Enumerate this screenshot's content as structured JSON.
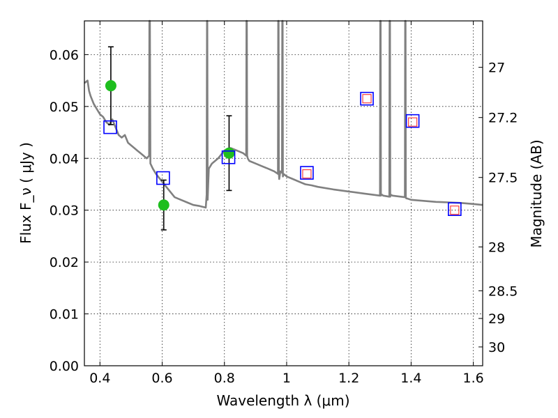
{
  "chart_data": {
    "type": "scatter",
    "title": "",
    "xlabel": "Wavelength  λ (μm)",
    "ylabel": "Flux  F_ν  ( μJy )",
    "y2label": "Magnitude (AB)",
    "xlim": [
      0.35,
      1.63
    ],
    "ylim": [
      0.0,
      0.0665
    ],
    "grid": true,
    "x_ticks": [
      0.4,
      0.6,
      0.8,
      1.0,
      1.2,
      1.4,
      1.6
    ],
    "x_tick_labels": [
      "0.4",
      "0.6",
      "0.8",
      "1",
      "1.2",
      "1.4",
      "1.6"
    ],
    "y_ticks": [
      0.0,
      0.01,
      0.02,
      0.03,
      0.04,
      0.05,
      0.06
    ],
    "y_tick_labels": [
      "0.00",
      "0.01",
      "0.02",
      "0.03",
      "0.04",
      "0.05",
      "0.06"
    ],
    "y2_ticks": [
      {
        "label": "27",
        "mag": 27.0
      },
      {
        "label": "27.2",
        "mag": 27.2
      },
      {
        "label": "27.5",
        "mag": 27.5
      },
      {
        "label": "28",
        "mag": 28.0
      },
      {
        "label": "28.5",
        "mag": 28.5
      },
      {
        "label": "29",
        "mag": 29.0
      },
      {
        "label": "30",
        "mag": 30.0
      }
    ],
    "series": [
      {
        "type": "line",
        "color": "#808080",
        "x": [
          0.35,
          0.36,
          0.365,
          0.37,
          0.38,
          0.39,
          0.4,
          0.41,
          0.42,
          0.43,
          0.44,
          0.45,
          0.46,
          0.47,
          0.48,
          0.49,
          0.5,
          0.51,
          0.52,
          0.53,
          0.54,
          0.55,
          0.558,
          0.559,
          0.5605,
          0.562,
          0.57,
          0.58,
          0.6,
          0.62,
          0.64,
          0.66,
          0.68,
          0.7,
          0.72,
          0.74,
          0.743,
          0.744,
          0.745,
          0.746,
          0.748,
          0.75,
          0.76,
          0.78,
          0.8,
          0.82,
          0.84,
          0.86,
          0.87,
          0.871,
          0.872,
          0.873,
          0.875,
          0.88,
          0.9,
          0.92,
          0.94,
          0.96,
          0.972,
          0.973,
          0.974,
          0.975,
          0.976,
          0.98,
          0.985,
          0.986,
          0.987,
          0.988,
          0.99,
          1.0,
          1.02,
          1.04,
          1.06,
          1.08,
          1.1,
          1.15,
          1.2,
          1.25,
          1.3,
          1.301,
          1.302,
          1.303,
          1.304,
          1.306,
          1.31,
          1.33,
          1.331,
          1.332,
          1.333,
          1.334,
          1.34,
          1.38,
          1.381,
          1.382,
          1.383,
          1.384,
          1.39,
          1.4,
          1.44,
          1.48,
          1.52,
          1.56,
          1.6,
          1.63
        ],
        "y": [
          0.0545,
          0.055,
          0.053,
          0.052,
          0.0505,
          0.0495,
          0.0485,
          0.048,
          0.047,
          0.0465,
          0.0475,
          0.046,
          0.0445,
          0.044,
          0.0445,
          0.043,
          0.0425,
          0.042,
          0.0415,
          0.041,
          0.0405,
          0.04,
          0.0405,
          0.0665,
          0.0665,
          0.039,
          0.038,
          0.037,
          0.0355,
          0.034,
          0.0325,
          0.032,
          0.0315,
          0.031,
          0.0308,
          0.0305,
          0.033,
          0.0665,
          0.0665,
          0.032,
          0.035,
          0.038,
          0.039,
          0.04,
          0.0415,
          0.042,
          0.0415,
          0.041,
          0.0405,
          0.0665,
          0.0665,
          0.0405,
          0.04,
          0.0395,
          0.039,
          0.0385,
          0.038,
          0.0375,
          0.037,
          0.0665,
          0.0665,
          0.037,
          0.036,
          0.0375,
          0.0372,
          0.0665,
          0.0665,
          0.0365,
          0.037,
          0.0365,
          0.036,
          0.0355,
          0.035,
          0.0348,
          0.0345,
          0.034,
          0.0336,
          0.0332,
          0.0328,
          0.0665,
          0.0665,
          0.0328,
          0.033,
          0.033,
          0.0328,
          0.0326,
          0.0665,
          0.0665,
          0.0326,
          0.033,
          0.0328,
          0.0325,
          0.0665,
          0.0665,
          0.0325,
          0.0323,
          0.0322,
          0.032,
          0.0318,
          0.0316,
          0.0315,
          0.0314,
          0.0312,
          0.031
        ]
      },
      {
        "type": "points",
        "marker": "circle",
        "color": "#1ebe1e",
        "x": [
          0.435,
          0.605,
          0.815
        ],
        "y": [
          0.054,
          0.031,
          0.041
        ],
        "yerr": [
          0.0075,
          0.0048,
          0.0072
        ]
      },
      {
        "type": "points",
        "marker": "square-open",
        "color": "#0000ff",
        "x": [
          0.433,
          0.603,
          0.813,
          1.065,
          1.258,
          1.405,
          1.54
        ],
        "y": [
          0.046,
          0.0362,
          0.0402,
          0.0372,
          0.0515,
          0.0472,
          0.0302
        ]
      },
      {
        "type": "points",
        "marker": "square-open-small",
        "color": "#ff4040",
        "x": [
          1.065,
          1.258,
          1.405,
          1.54
        ],
        "y": [
          0.037,
          0.0515,
          0.047,
          0.03
        ]
      }
    ]
  }
}
